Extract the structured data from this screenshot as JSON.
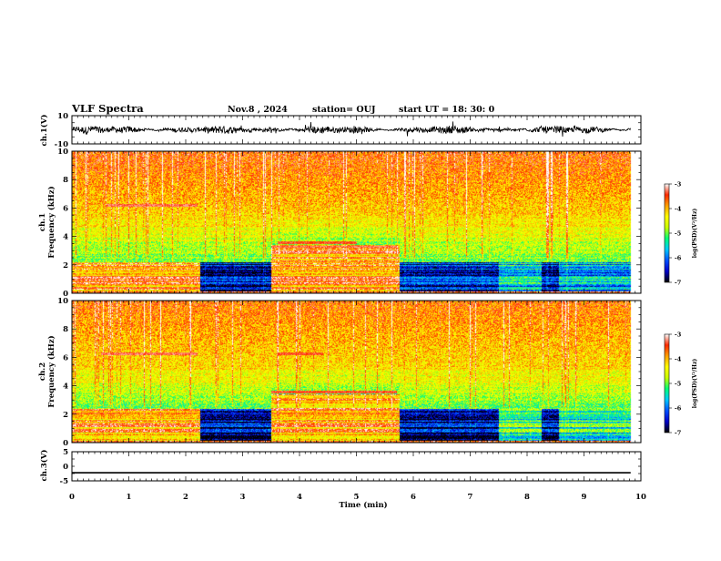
{
  "header": {
    "title": "VLF Spectra",
    "date": "Nov.8 , 2024",
    "station": "station= OUJ",
    "start": "start UT = 18: 30: 0"
  },
  "colorbar": {
    "label": "log(PSD)(V²/Hz)",
    "ticks": [
      "-3",
      "-4",
      "-5",
      "-6",
      "-7"
    ],
    "range": [
      -7,
      -3
    ],
    "colors": [
      "#000000",
      "#0000c8",
      "#0050ff",
      "#00c8ff",
      "#00ff78",
      "#c8ff00",
      "#ffff00",
      "#ffa000",
      "#ff2a00",
      "#ffffff"
    ]
  },
  "chart_data": [
    {
      "type": "line",
      "name": "ch1-waveform",
      "ylabel": "ch.1(V)",
      "yticks": [
        "10",
        "-10"
      ],
      "ylim": [
        -10,
        10
      ],
      "xlim": [
        0,
        10
      ],
      "x_extent": [
        0,
        9.82
      ],
      "amplitude_note": "noisy waveform, typical amplitude about ±2 V"
    },
    {
      "type": "heatmap",
      "name": "ch1-spectrogram",
      "ylabel": "ch.1\nFrequency (kHz)",
      "yticks": [
        "0",
        "2",
        "4",
        "6",
        "8",
        "10"
      ],
      "ylim": [
        0,
        10
      ],
      "xlim": [
        0,
        10
      ],
      "x_extent": [
        0,
        9.82
      ],
      "segments": [
        {
          "t": [
            0.0,
            2.25
          ],
          "low_band": [
            0,
            2.2
          ],
          "low_level": -3.8
        },
        {
          "t": [
            2.25,
            3.5
          ],
          "low_band": [
            0,
            2.2
          ],
          "low_level": -6.6
        },
        {
          "t": [
            3.5,
            5.75
          ],
          "low_band": [
            0,
            3.4
          ],
          "low_level": -3.8
        },
        {
          "t": [
            5.75,
            7.5
          ],
          "low_band": [
            0,
            2.2
          ],
          "low_level": -6.4
        },
        {
          "t": [
            7.5,
            8.25
          ],
          "low_band": [
            0,
            2.2
          ],
          "low_level": -5.6
        },
        {
          "t": [
            8.25,
            8.55
          ],
          "low_band": [
            0,
            2.2
          ],
          "low_level": -6.6
        },
        {
          "t": [
            8.55,
            9.82
          ],
          "low_band": [
            0,
            2.2
          ],
          "low_level": -5.8
        }
      ],
      "mid_level": -5.0,
      "high_level": -3.6,
      "lines": [
        {
          "f": 6.2,
          "t": [
            0.6,
            2.2
          ],
          "level": -3.3
        },
        {
          "f": 3.3,
          "t": [
            3.5,
            5.7
          ],
          "level": -3.3
        },
        {
          "f": 3.6,
          "t": [
            3.6,
            5.0
          ],
          "level": -3.4
        }
      ]
    },
    {
      "type": "heatmap",
      "name": "ch2-spectrogram",
      "ylabel": "ch.2\nFrequency (kHz)",
      "yticks": [
        "0",
        "2",
        "4",
        "6",
        "8",
        "10"
      ],
      "ylim": [
        0,
        10
      ],
      "xlim": [
        0,
        10
      ],
      "x_extent": [
        0,
        9.82
      ],
      "segments": [
        {
          "t": [
            0.0,
            2.25
          ],
          "low_band": [
            0,
            2.4
          ],
          "low_level": -3.9
        },
        {
          "t": [
            2.25,
            3.5
          ],
          "low_band": [
            0,
            2.4
          ],
          "low_level": -6.6
        },
        {
          "t": [
            3.5,
            5.75
          ],
          "low_band": [
            0,
            3.4
          ],
          "low_level": -3.9
        },
        {
          "t": [
            5.75,
            7.5
          ],
          "low_band": [
            0,
            2.4
          ],
          "low_level": -6.6
        },
        {
          "t": [
            7.5,
            8.25
          ],
          "low_band": [
            0,
            2.4
          ],
          "low_level": -5.2
        },
        {
          "t": [
            8.25,
            8.55
          ],
          "low_band": [
            0,
            2.4
          ],
          "low_level": -6.6
        },
        {
          "t": [
            8.55,
            9.82
          ],
          "low_band": [
            0,
            2.4
          ],
          "low_level": -5.3
        }
      ],
      "mid_level": -5.0,
      "high_level": -3.7,
      "lines": [
        {
          "f": 6.3,
          "t": [
            0.5,
            2.2
          ],
          "level": -3.3
        },
        {
          "f": 3.6,
          "t": [
            3.5,
            5.7
          ],
          "level": -3.4
        },
        {
          "f": 6.3,
          "t": [
            3.6,
            4.4
          ],
          "level": -3.4
        }
      ]
    },
    {
      "type": "line",
      "name": "ch3-waveform",
      "ylabel": "ch.3(V)",
      "yticks": [
        "5",
        "0",
        "-5"
      ],
      "ylim": [
        -5,
        5
      ],
      "xlim": [
        0,
        10
      ],
      "x": [
        0,
        9.82
      ],
      "y": [
        -2.2,
        -2.2
      ]
    }
  ],
  "xaxis": {
    "label": "Time (min)",
    "ticks": [
      "0",
      "1",
      "2",
      "3",
      "4",
      "5",
      "6",
      "7",
      "8",
      "9",
      "10"
    ]
  }
}
